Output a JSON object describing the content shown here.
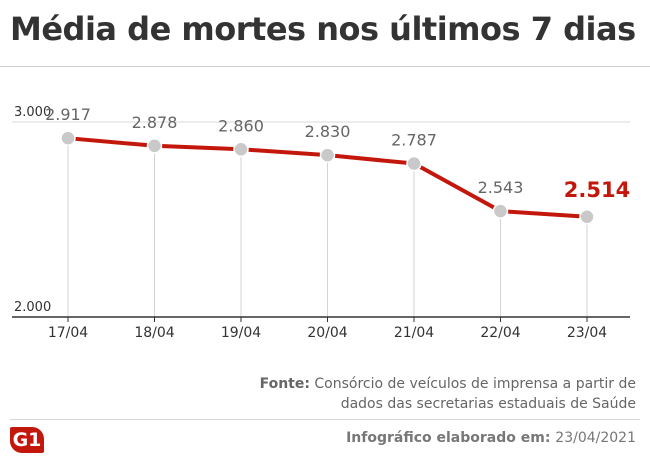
{
  "title": "Média de mortes nos últimos 7 dias",
  "chart_data": {
    "type": "line",
    "categories": [
      "17/04",
      "18/04",
      "19/04",
      "20/04",
      "21/04",
      "22/04",
      "23/04"
    ],
    "values": [
      2917,
      2878,
      2860,
      2830,
      2787,
      2543,
      2514
    ],
    "value_labels": [
      "2.917",
      "2.878",
      "2.860",
      "2.830",
      "2.787",
      "2.543",
      "2.514"
    ],
    "y_tick_labels": [
      "3.000",
      "2.000"
    ],
    "y_ticks": [
      3000,
      2000
    ],
    "ylim": [
      2000,
      3000
    ],
    "highlight_last": true,
    "colors": {
      "line": "#c4170c",
      "marker": "#c9c9c9",
      "highlight_label": "#c4170c",
      "label": "#666666",
      "drop_line": "#d3d3d3",
      "grid": "#d9d9d9"
    }
  },
  "footer": {
    "source_label": "Fonte:",
    "source_text": "Consórcio de veículos de imprensa a partir de dados das secretarias estaduais de Saúde",
    "credit_label": "Infográfico elaborado em:",
    "credit_date": "23/04/2021",
    "logo_text": "G1"
  }
}
